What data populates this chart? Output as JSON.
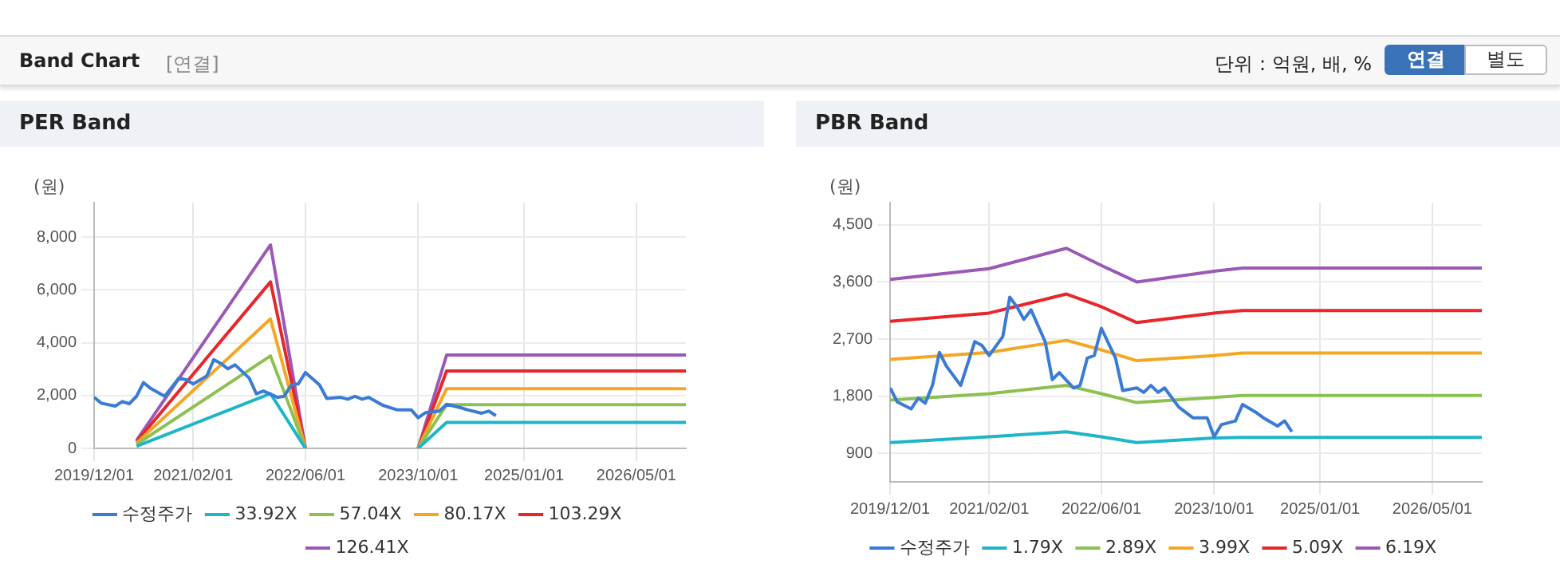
{
  "chart_data": [
    {
      "type": "line",
      "title": "PER Band",
      "ylabel": "(원)",
      "annotations": [
        "Band Chart",
        "[연결]",
        "단위 : 억원, 배, %",
        "연결",
        "별도"
      ],
      "xlim": [
        "2019-12-01",
        "2026-12-01"
      ],
      "xticks": [
        {
          "value": "2019-12-01",
          "label": "2019/12/01"
        },
        {
          "value": "2021-02-01",
          "label": "2021/02/01"
        },
        {
          "value": "2022-06-01",
          "label": "2022/06/01"
        },
        {
          "value": "2023-10-01",
          "label": "2023/10/01"
        },
        {
          "value": "2025-01-01",
          "label": "2025/01/01"
        },
        {
          "value": "2026-05-01",
          "label": "2026/05/01"
        }
      ],
      "ylim": [
        0,
        9300
      ],
      "yticks": [
        0,
        {
          "value": 2000,
          "label": "2,000"
        },
        {
          "value": 4000,
          "label": "4,000"
        },
        {
          "value": 6000,
          "label": "6,000"
        },
        {
          "value": 8000,
          "label": "8,000"
        }
      ],
      "grid": true,
      "legend": "bottom",
      "marker": "none",
      "line_style": "solid",
      "series": [
        {
          "name": "수정주가",
          "color": "#3a7bd5",
          "x": [
            "2019-12",
            "2020-01",
            "2020-03",
            "2020-04",
            "2020-05",
            "2020-06",
            "2020-07",
            "2020-08",
            "2020-10",
            "2020-12",
            "2021-01",
            "2021-02",
            "2021-04",
            "2021-05",
            "2021-06",
            "2021-07",
            "2021-08",
            "2021-10",
            "2021-11",
            "2021-12",
            "2022-02",
            "2022-03",
            "2022-04",
            "2022-05",
            "2022-06",
            "2022-08",
            "2022-09",
            "2022-11",
            "2022-12",
            "2023-01",
            "2023-02",
            "2023-03",
            "2023-05",
            "2023-07",
            "2023-09",
            "2023-10",
            "2023-11",
            "2024-01",
            "2024-02",
            "2024-04",
            "2024-05",
            "2024-07",
            "2024-08",
            "2024-09"
          ],
          "values": [
            1930,
            1710,
            1600,
            1770,
            1690,
            1970,
            2490,
            2270,
            1970,
            2660,
            2600,
            2440,
            2740,
            3360,
            3210,
            3010,
            3160,
            2660,
            2060,
            2170,
            1930,
            1970,
            2400,
            2440,
            2870,
            2400,
            1890,
            1930,
            1860,
            1970,
            1860,
            1930,
            1630,
            1460,
            1460,
            1160,
            1350,
            1410,
            1670,
            1540,
            1460,
            1330,
            1410,
            1240
          ]
        },
        {
          "name": "33.92X",
          "color": "#1fb5c9",
          "x": [
            "2020-06",
            "2022-01",
            "2022-06",
            "2023-01",
            "2023-10",
            "2024-02",
            "2026-12"
          ],
          "values": [
            80,
            2070,
            0,
            null,
            0,
            980,
            980
          ]
        },
        {
          "name": "57.04X",
          "color": "#8cc152",
          "x": [
            "2020-06",
            "2022-01",
            "2022-06",
            "2023-01",
            "2023-10",
            "2024-02",
            "2026-12"
          ],
          "values": [
            150,
            3500,
            0,
            null,
            0,
            1650,
            1650
          ]
        },
        {
          "name": "80.17X",
          "color": "#f5a623",
          "x": [
            "2020-06",
            "2022-01",
            "2022-06",
            "2023-01",
            "2023-10",
            "2024-02",
            "2026-12"
          ],
          "values": [
            200,
            4900,
            0,
            null,
            0,
            2260,
            2260
          ]
        },
        {
          "name": "103.29X",
          "color": "#e8262b",
          "x": [
            "2020-06",
            "2022-01",
            "2022-06",
            "2023-01",
            "2023-10",
            "2024-02",
            "2026-12"
          ],
          "values": [
            250,
            6300,
            0,
            null,
            0,
            2930,
            2930
          ]
        },
        {
          "name": "126.41X",
          "color": "#9b59b6",
          "x": [
            "2020-06",
            "2022-01",
            "2022-06",
            "2023-01",
            "2023-10",
            "2024-02",
            "2026-12"
          ],
          "values": [
            300,
            7700,
            0,
            null,
            0,
            3530,
            3530
          ]
        }
      ]
    },
    {
      "type": "line",
      "title": "PBR Band",
      "ylabel": "(원)",
      "xlim": [
        "2019-12-01",
        "2026-12-01"
      ],
      "xticks": [
        {
          "value": "2019-12-01",
          "label": "2019/12/01"
        },
        {
          "value": "2021-02-01",
          "label": "2021/02/01"
        },
        {
          "value": "2022-06-01",
          "label": "2022/06/01"
        },
        {
          "value": "2023-10-01",
          "label": "2023/10/01"
        },
        {
          "value": "2025-01-01",
          "label": "2025/01/01"
        },
        {
          "value": "2026-05-01",
          "label": "2026/05/01"
        }
      ],
      "ylim": [
        450,
        4850
      ],
      "yticks": [
        900,
        {
          "value": 1800,
          "label": "1,800"
        },
        {
          "value": 2700,
          "label": "2,700"
        },
        {
          "value": 3600,
          "label": "3,600"
        },
        {
          "value": 4500,
          "label": "4,500"
        }
      ],
      "grid": true,
      "legend": "bottom",
      "marker": "none",
      "line_style": "solid",
      "series": [
        {
          "name": "수정주가",
          "color": "#3a7bd5",
          "x": [
            "2019-12",
            "2020-01",
            "2020-03",
            "2020-04",
            "2020-05",
            "2020-06",
            "2020-07",
            "2020-08",
            "2020-10",
            "2020-12",
            "2021-01",
            "2021-02",
            "2021-04",
            "2021-05",
            "2021-06",
            "2021-07",
            "2021-08",
            "2021-10",
            "2021-11",
            "2021-12",
            "2022-02",
            "2022-03",
            "2022-04",
            "2022-05",
            "2022-06",
            "2022-08",
            "2022-09",
            "2022-11",
            "2022-12",
            "2023-01",
            "2023-02",
            "2023-03",
            "2023-05",
            "2023-07",
            "2023-09",
            "2023-10",
            "2023-11",
            "2024-01",
            "2024-02",
            "2024-04",
            "2024-05",
            "2024-07",
            "2024-08",
            "2024-09"
          ],
          "values": [
            1930,
            1710,
            1600,
            1770,
            1690,
            1970,
            2490,
            2270,
            1970,
            2660,
            2600,
            2440,
            2740,
            3360,
            3210,
            3010,
            3160,
            2660,
            2060,
            2170,
            1930,
            1970,
            2400,
            2440,
            2870,
            2400,
            1890,
            1930,
            1860,
            1970,
            1860,
            1930,
            1630,
            1460,
            1460,
            1160,
            1350,
            1410,
            1670,
            1540,
            1460,
            1330,
            1410,
            1240
          ]
        },
        {
          "name": "1.79X",
          "color": "#1fb5c9",
          "x": [
            "2019-12",
            "2021-02",
            "2022-01",
            "2022-06",
            "2022-11",
            "2023-10",
            "2024-02",
            "2026-12"
          ],
          "values": [
            1070,
            1160,
            1240,
            1160,
            1070,
            1140,
            1150,
            1150
          ]
        },
        {
          "name": "2.89X",
          "color": "#8cc152",
          "x": [
            "2019-12",
            "2021-02",
            "2022-01",
            "2022-06",
            "2022-11",
            "2023-10",
            "2024-02",
            "2026-12"
          ],
          "values": [
            1740,
            1840,
            1970,
            1840,
            1700,
            1780,
            1810,
            1810
          ]
        },
        {
          "name": "3.99X",
          "color": "#f5a623",
          "x": [
            "2019-12",
            "2021-02",
            "2022-01",
            "2022-06",
            "2022-11",
            "2023-10",
            "2024-02",
            "2026-12"
          ],
          "values": [
            2380,
            2490,
            2680,
            2530,
            2360,
            2440,
            2480,
            2480
          ]
        },
        {
          "name": "5.09X",
          "color": "#e8262b",
          "x": [
            "2019-12",
            "2021-02",
            "2022-01",
            "2022-06",
            "2022-11",
            "2023-10",
            "2024-02",
            "2026-12"
          ],
          "values": [
            2980,
            3110,
            3410,
            3210,
            2960,
            3110,
            3150,
            3150
          ]
        },
        {
          "name": "6.19X",
          "color": "#9b59b6",
          "x": [
            "2019-12",
            "2021-02",
            "2022-01",
            "2022-06",
            "2022-11",
            "2023-10",
            "2024-02",
            "2026-12"
          ],
          "values": [
            3640,
            3810,
            4130,
            3860,
            3600,
            3770,
            3820,
            3820
          ]
        }
      ]
    }
  ]
}
